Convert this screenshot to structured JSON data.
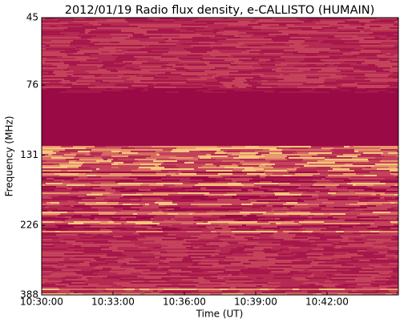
{
  "chart_data": {
    "type": "spectrogram",
    "title": "2012/01/19  Radio flux density, e-CALLISTO (HUMAIN)",
    "xlabel": "Time (UT)",
    "ylabel": "Frequency (MHz)",
    "xlim": [
      "10:30:00",
      "10:45:00"
    ],
    "xticks": [
      "10:30:00",
      "10:33:00",
      "10:36:00",
      "10:39:00",
      "10:42:00"
    ],
    "ylim": [
      45,
      388
    ],
    "yticks": [
      45,
      76,
      131,
      226,
      388
    ],
    "ylog": true,
    "yreverse": true
  }
}
